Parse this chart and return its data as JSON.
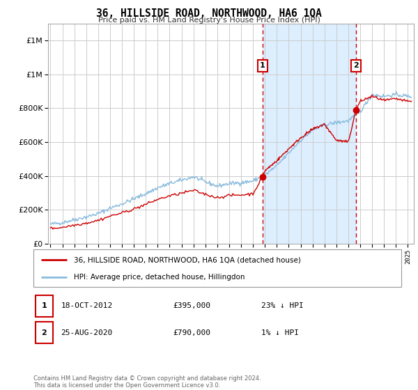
{
  "title": "36, HILLSIDE ROAD, NORTHWOOD, HA6 1QA",
  "subtitle": "Price paid vs. HM Land Registry's House Price Index (HPI)",
  "sale1_date_num": 2012.8,
  "sale1_label": "18-OCT-2012",
  "sale1_price": 395000,
  "sale1_pct": "23% ↓ HPI",
  "sale2_date_num": 2020.65,
  "sale2_label": "25-AUG-2020",
  "sale2_price": 790000,
  "sale2_pct": "1% ↓ HPI",
  "legend_line1": "36, HILLSIDE ROAD, NORTHWOOD, HA6 1QA (detached house)",
  "legend_line2": "HPI: Average price, detached house, Hillingdon",
  "annotation1": "1",
  "annotation2": "2",
  "footer": "Contains HM Land Registry data © Crown copyright and database right 2024.\nThis data is licensed under the Open Government Licence v3.0.",
  "red_color": "#cc0000",
  "blue_color": "#88bbdd",
  "shade_color": "#ddeeff",
  "ylim_max": 1300000,
  "xlim_start": 1994.8,
  "xlim_end": 2025.5,
  "hpi_years": [
    1995,
    1996,
    1997,
    1998,
    1999,
    2000,
    2001,
    2002,
    2003,
    2004,
    2005,
    2006,
    2007,
    2008,
    2009,
    2010,
    2011,
    2012,
    2013,
    2014,
    2015,
    2016,
    2017,
    2018,
    2019,
    2020,
    2021,
    2022,
    2023,
    2024,
    2025
  ],
  "hpi_vals": [
    115000,
    125000,
    142000,
    158000,
    178000,
    210000,
    235000,
    265000,
    295000,
    330000,
    355000,
    375000,
    395000,
    365000,
    340000,
    355000,
    360000,
    370000,
    405000,
    460000,
    535000,
    610000,
    670000,
    700000,
    715000,
    725000,
    780000,
    880000,
    870000,
    880000,
    870000
  ],
  "red_years_pre": [
    1995,
    1996,
    1997,
    1998,
    1999,
    2000,
    2001,
    2002,
    2003,
    2004,
    2005,
    2006,
    2007,
    2008,
    2009,
    2010,
    2011,
    2012.0,
    2012.8
  ],
  "red_vals_pre": [
    90000,
    97000,
    110000,
    122000,
    138000,
    163000,
    182000,
    205000,
    232000,
    262000,
    282000,
    298000,
    315000,
    292000,
    272000,
    285000,
    288000,
    295000,
    395000
  ],
  "red_years_mid": [
    2012.8,
    2013,
    2014,
    2015,
    2016,
    2017,
    2018,
    2019,
    2020.0,
    2020.65
  ],
  "red_vals_mid": [
    395000,
    430000,
    490000,
    560000,
    625000,
    675000,
    705000,
    610000,
    600000,
    790000
  ],
  "red_years_post": [
    2020.65,
    2021,
    2022,
    2023,
    2024,
    2025
  ],
  "red_vals_post": [
    790000,
    840000,
    870000,
    845000,
    855000,
    840000
  ]
}
